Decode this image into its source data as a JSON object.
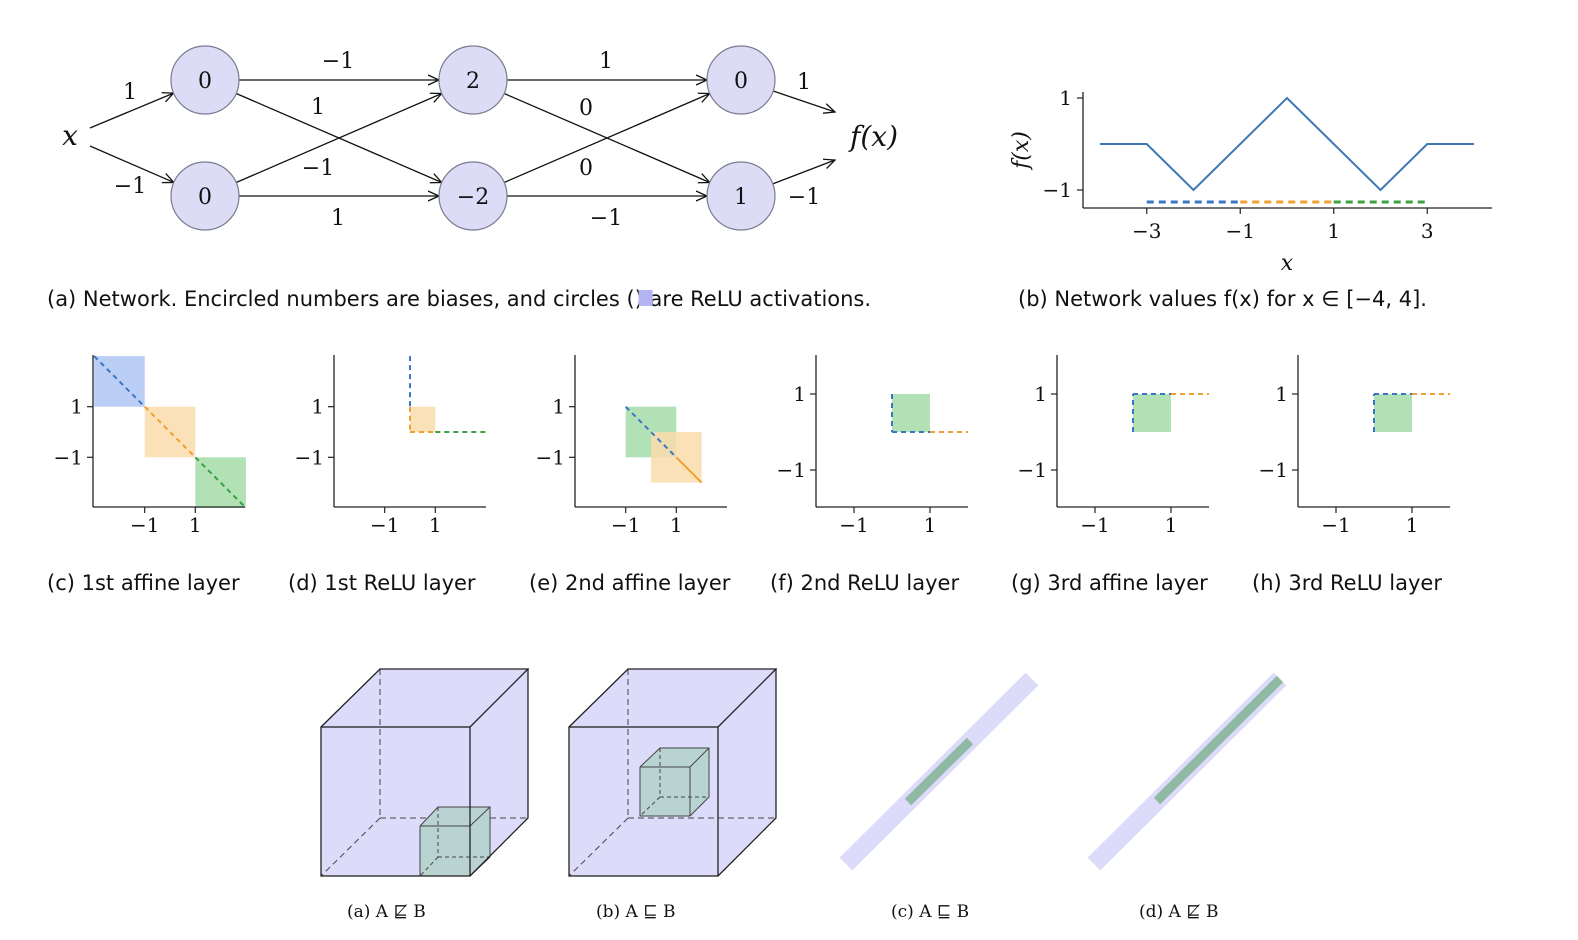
{
  "colors": {
    "node_fill": "#dcdcf7",
    "node_stroke": "#7b7b8f",
    "blue": "#3b76c4",
    "orange": "#f0a030",
    "green": "#3aa040",
    "blue_fill": "#aec6f5",
    "orange_fill": "#f9dcab",
    "green_fill": "#a6dca9",
    "cube_fill": "#dcdcfa",
    "inner_fill": "#b9d3d3",
    "line_color": "#3d78b5"
  },
  "network": {
    "input_label": "x",
    "output_label": "f(x)",
    "layers": [
      {
        "nodes": [
          {
            "id": "n10",
            "bias": "0"
          },
          {
            "id": "n11",
            "bias": "0"
          }
        ]
      },
      {
        "nodes": [
          {
            "id": "n20",
            "bias": "2"
          },
          {
            "id": "n21",
            "bias": "−2"
          }
        ]
      },
      {
        "nodes": [
          {
            "id": "n30",
            "bias": "0"
          },
          {
            "id": "n31",
            "bias": "1"
          }
        ]
      }
    ],
    "edges": [
      {
        "from": "x",
        "to": "n10",
        "weight": "1"
      },
      {
        "from": "x",
        "to": "n11",
        "weight": "−1"
      },
      {
        "from": "n10",
        "to": "n20",
        "weight": "−1"
      },
      {
        "from": "n10",
        "to": "n21",
        "weight": "1"
      },
      {
        "from": "n11",
        "to": "n20",
        "weight": "−1"
      },
      {
        "from": "n11",
        "to": "n21",
        "weight": "1"
      },
      {
        "from": "n20",
        "to": "n30",
        "weight": "1"
      },
      {
        "from": "n20",
        "to": "n31",
        "weight": "0"
      },
      {
        "from": "n21",
        "to": "n30",
        "weight": "0"
      },
      {
        "from": "n21",
        "to": "n31",
        "weight": "−1"
      },
      {
        "from": "n30",
        "to": "out",
        "weight": "1"
      },
      {
        "from": "n31",
        "to": "out",
        "weight": "−1"
      }
    ]
  },
  "captions": {
    "a_prefix": "(a) Network. Encircled numbers are biases, and circles (",
    "a_suffix": ") are ReLU activations.",
    "b": "(b) Network values f(x) for x ∈ [−4, 4].",
    "c": "(c) 1st affine layer",
    "d": "(d) 1st ReLU layer",
    "e": "(e) 2nd affine layer",
    "f": "(f) 2nd ReLU layer",
    "g": "(g) 3rd affine layer",
    "h": "(h) 3rd ReLU layer",
    "bottom": [
      "(a) A ⋢ B",
      "(b) A ⊑ B",
      "(c) A ⊑ B",
      "(d) A ⋢ B"
    ]
  },
  "chart_data": {
    "type": "line",
    "xlabel": "x",
    "ylabel": "f(x)",
    "xlim": [
      -4,
      4
    ],
    "ylim": [
      -1,
      1
    ],
    "xticks": [
      "−3",
      "−1",
      "1",
      "3"
    ],
    "yticks": [
      "1",
      "−1"
    ],
    "x": [
      -4,
      -3,
      -2,
      0,
      2,
      3,
      4
    ],
    "y": [
      0,
      0,
      -1,
      1,
      -1,
      0,
      0
    ],
    "segments": [
      {
        "color": "blue",
        "from": -3,
        "to": -1
      },
      {
        "color": "orange",
        "from": -1,
        "to": 1
      },
      {
        "color": "green",
        "from": 1,
        "to": 3
      }
    ]
  },
  "small_panels": {
    "xticks": [
      "−1",
      "1"
    ],
    "yticks": [
      "1",
      "−1"
    ]
  }
}
